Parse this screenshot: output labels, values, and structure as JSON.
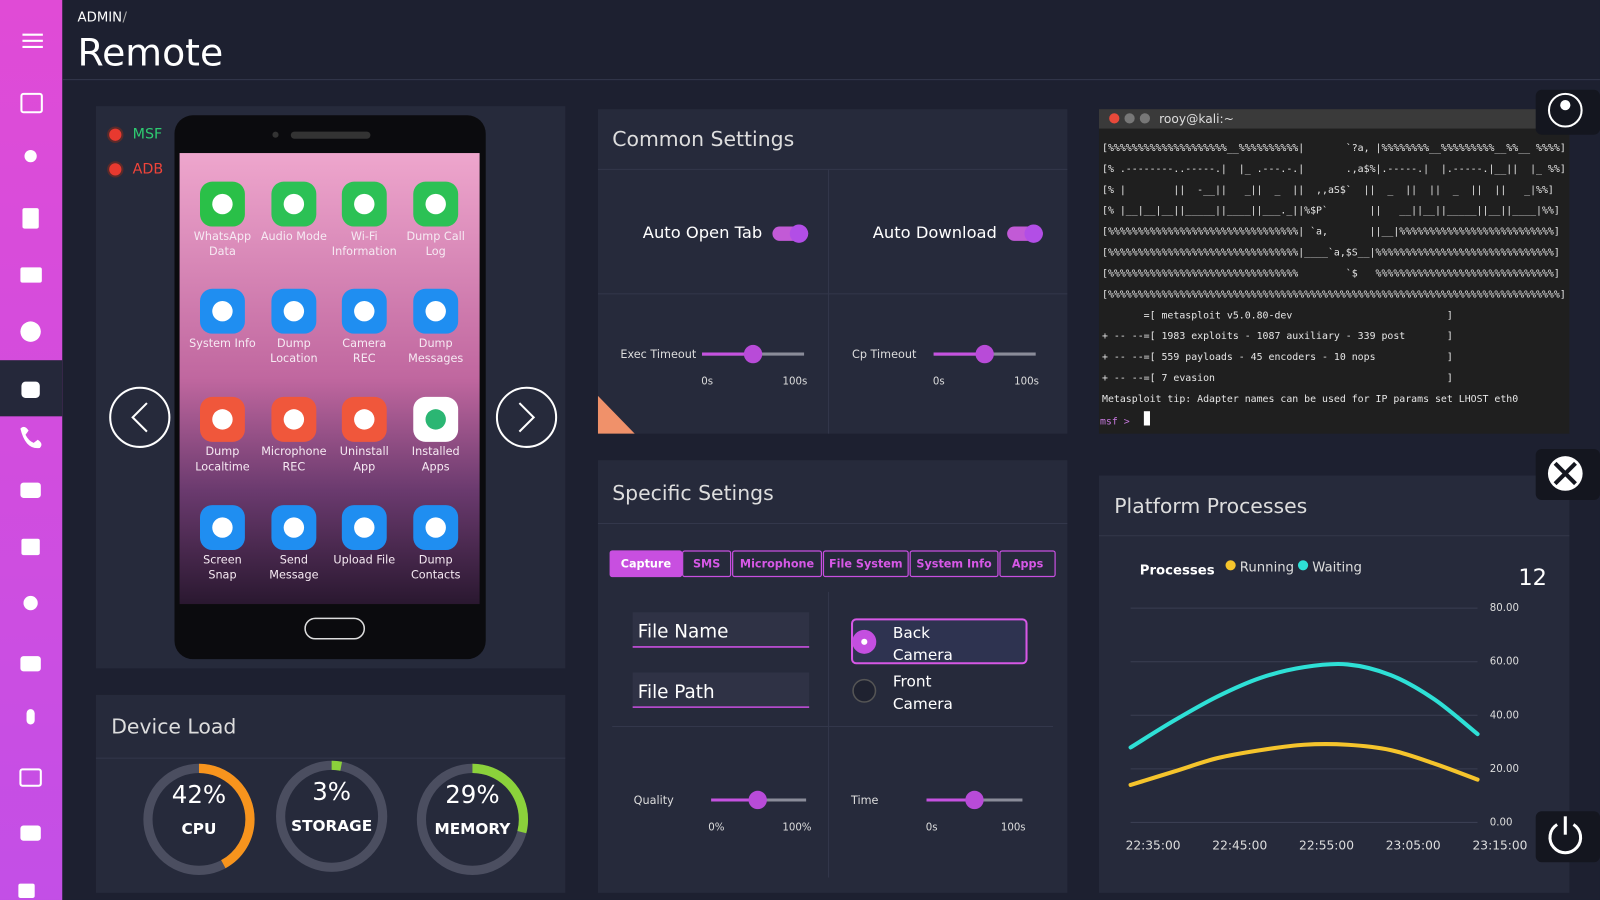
{
  "breadcrumb": "ADMIN",
  "title": "Remote",
  "status": [
    {
      "label": "MSF",
      "color": "#2ecc71"
    },
    {
      "label": "ADB",
      "color": "#f0443a"
    }
  ],
  "apps": [
    {
      "label": "WhatsApp Data",
      "color": "#2ac048"
    },
    {
      "label": "Audio Mode",
      "color": "#2cc155"
    },
    {
      "label": "Wi-Fi Information",
      "color": "#2cc155"
    },
    {
      "label": "Dump Call Log",
      "color": "#2cc155"
    },
    {
      "label": "System Info",
      "color": "#1f8ef1"
    },
    {
      "label": "Dump Location",
      "color": "#1f8ef1"
    },
    {
      "label": "Camera REC",
      "color": "#1f8ef1"
    },
    {
      "label": "Dump Messages",
      "color": "#1f8ef1"
    },
    {
      "label": "Dump Localtime",
      "color": "#f0573b"
    },
    {
      "label": "Microphone REC",
      "color": "#f0573b"
    },
    {
      "label": "Uninstall App",
      "color": "#f0573b"
    },
    {
      "label": "Installed Apps",
      "color": "#ffffff"
    },
    {
      "label": "Screen Snap",
      "color": "#1f8ef1"
    },
    {
      "label": "Send Message",
      "color": "#1f8ef1"
    },
    {
      "label": "Upload File",
      "color": "#1f8ef1"
    },
    {
      "label": "Dump Contacts",
      "color": "#1f8ef1"
    }
  ],
  "common_settings": {
    "title": "Common Settings",
    "toggles": [
      {
        "label": "Auto Open Tab",
        "on": true
      },
      {
        "label": "Auto Download",
        "on": true
      }
    ],
    "sliders": [
      {
        "label": "Exec Timeout",
        "min": "0s",
        "max": "100s",
        "range": [
          0,
          100
        ],
        "value": 50
      },
      {
        "label": "Cp Timeout",
        "min": "0s",
        "max": "100s",
        "range": [
          0,
          100
        ],
        "value": 50
      }
    ]
  },
  "specific_settings": {
    "title": "Specific Setings",
    "tabs": [
      {
        "label": "Capture",
        "active": true
      },
      {
        "label": "SMS",
        "active": false
      },
      {
        "label": "Microphone",
        "active": false
      },
      {
        "label": "File System",
        "active": false
      },
      {
        "label": "System Info",
        "active": false
      },
      {
        "label": "Apps",
        "active": false
      }
    ],
    "fields": [
      "File Name",
      "File Path"
    ],
    "cameras": [
      {
        "label": "Back Camera",
        "selected": true
      },
      {
        "label": "Front Camera",
        "selected": false
      }
    ],
    "sliders": [
      {
        "label": "Quality",
        "min": "0%",
        "max": "100%",
        "range": [
          0,
          100
        ],
        "value": 49
      },
      {
        "label": "Time",
        "min": "0s",
        "max": "100s",
        "range": [
          0,
          100
        ],
        "value": 50
      }
    ]
  },
  "terminal": {
    "title": "rooy@kali:~",
    "lines": [
      "[%%%%%%%%%%%%%%%%%%%%__%%%%%%%%%%|       `?a, |%%%%%%%%__%%%%%%%%%__%%__ %%%%]",
      "[% .--------..-----.|  |_ .---.-.|       .,a$%|.-----.|  |.-----.|__||  |_ %%]",
      "[% |        ||  -__||   _||  _  ||  ,,aS$`  ||  _  ||  ||  _  ||  ||   _|%%]",
      "[% |__|__|__||_____||____||___._||%$P`       ||   __||__||_____||__||____|%%]",
      "[%%%%%%%%%%%%%%%%%%%%%%%%%%%%%%%%| `a,       ||__|%%%%%%%%%%%%%%%%%%%%%%%%%%]",
      "[%%%%%%%%%%%%%%%%%%%%%%%%%%%%%%%%|____`a,$S__|%%%%%%%%%%%%%%%%%%%%%%%%%%%%%%]",
      "[%%%%%%%%%%%%%%%%%%%%%%%%%%%%%%%%        `$   %%%%%%%%%%%%%%%%%%%%%%%%%%%%%%]",
      "[%%%%%%%%%%%%%%%%%%%%%%%%%%%%%%%%%%%%%%%%%%%%%%%%%%%%%%%%%%%%%%%%%%%%%%%%%%%%]",
      "       =[ metasploit v5.0.80-dev                          ]",
      "+ -- --=[ 1983 exploits - 1087 auxiliary - 339 post       ]",
      "+ -- --=[ 559 payloads - 45 encoders - 10 nops            ]",
      "+ -- --=[ 7 evasion                                       ]",
      "Metasploit tip: Adapter names can be used for IP params set LHOST eth0"
    ],
    "prompt": "msf >"
  },
  "device_load": {
    "title": "Device Load",
    "gauges": [
      {
        "name": "CPU",
        "value": 42,
        "value_label": "42%",
        "range": [
          0,
          100
        ],
        "color": "#f7941d"
      },
      {
        "name": "STORAGE",
        "value": 3,
        "value_label": "3%",
        "range": [
          0,
          100
        ],
        "color": "#8bd13b"
      },
      {
        "name": "MEMORY",
        "value": 29,
        "value_label": "29%",
        "range": [
          0,
          100
        ],
        "color": "#8bd13b"
      }
    ]
  },
  "chart_data": {
    "type": "line",
    "title": "Platform Processes",
    "legend_title": "Processes",
    "annotation": "12",
    "categories": [
      "22:35:00",
      null,
      "22:45:00",
      null,
      "22:55:00",
      null,
      "23:05:00",
      null,
      "23:15:00"
    ],
    "series": [
      {
        "name": "Running",
        "color": "#f5c42c",
        "values": [
          14,
          19,
          24,
          27,
          29,
          29,
          27,
          22,
          16
        ]
      },
      {
        "name": "Waiting",
        "color": "#2ee0d6",
        "values": [
          28,
          38,
          47,
          54,
          58,
          59,
          55,
          46,
          33
        ]
      }
    ],
    "ylim": [
      0,
      80
    ],
    "yticks": [
      {
        "value": 0,
        "label": "0.00"
      },
      {
        "value": 20,
        "label": "20.00"
      },
      {
        "value": 40,
        "label": "40.00"
      },
      {
        "value": 60,
        "label": "60.00"
      },
      {
        "value": 80,
        "label": "80.00"
      }
    ],
    "grid": true
  }
}
